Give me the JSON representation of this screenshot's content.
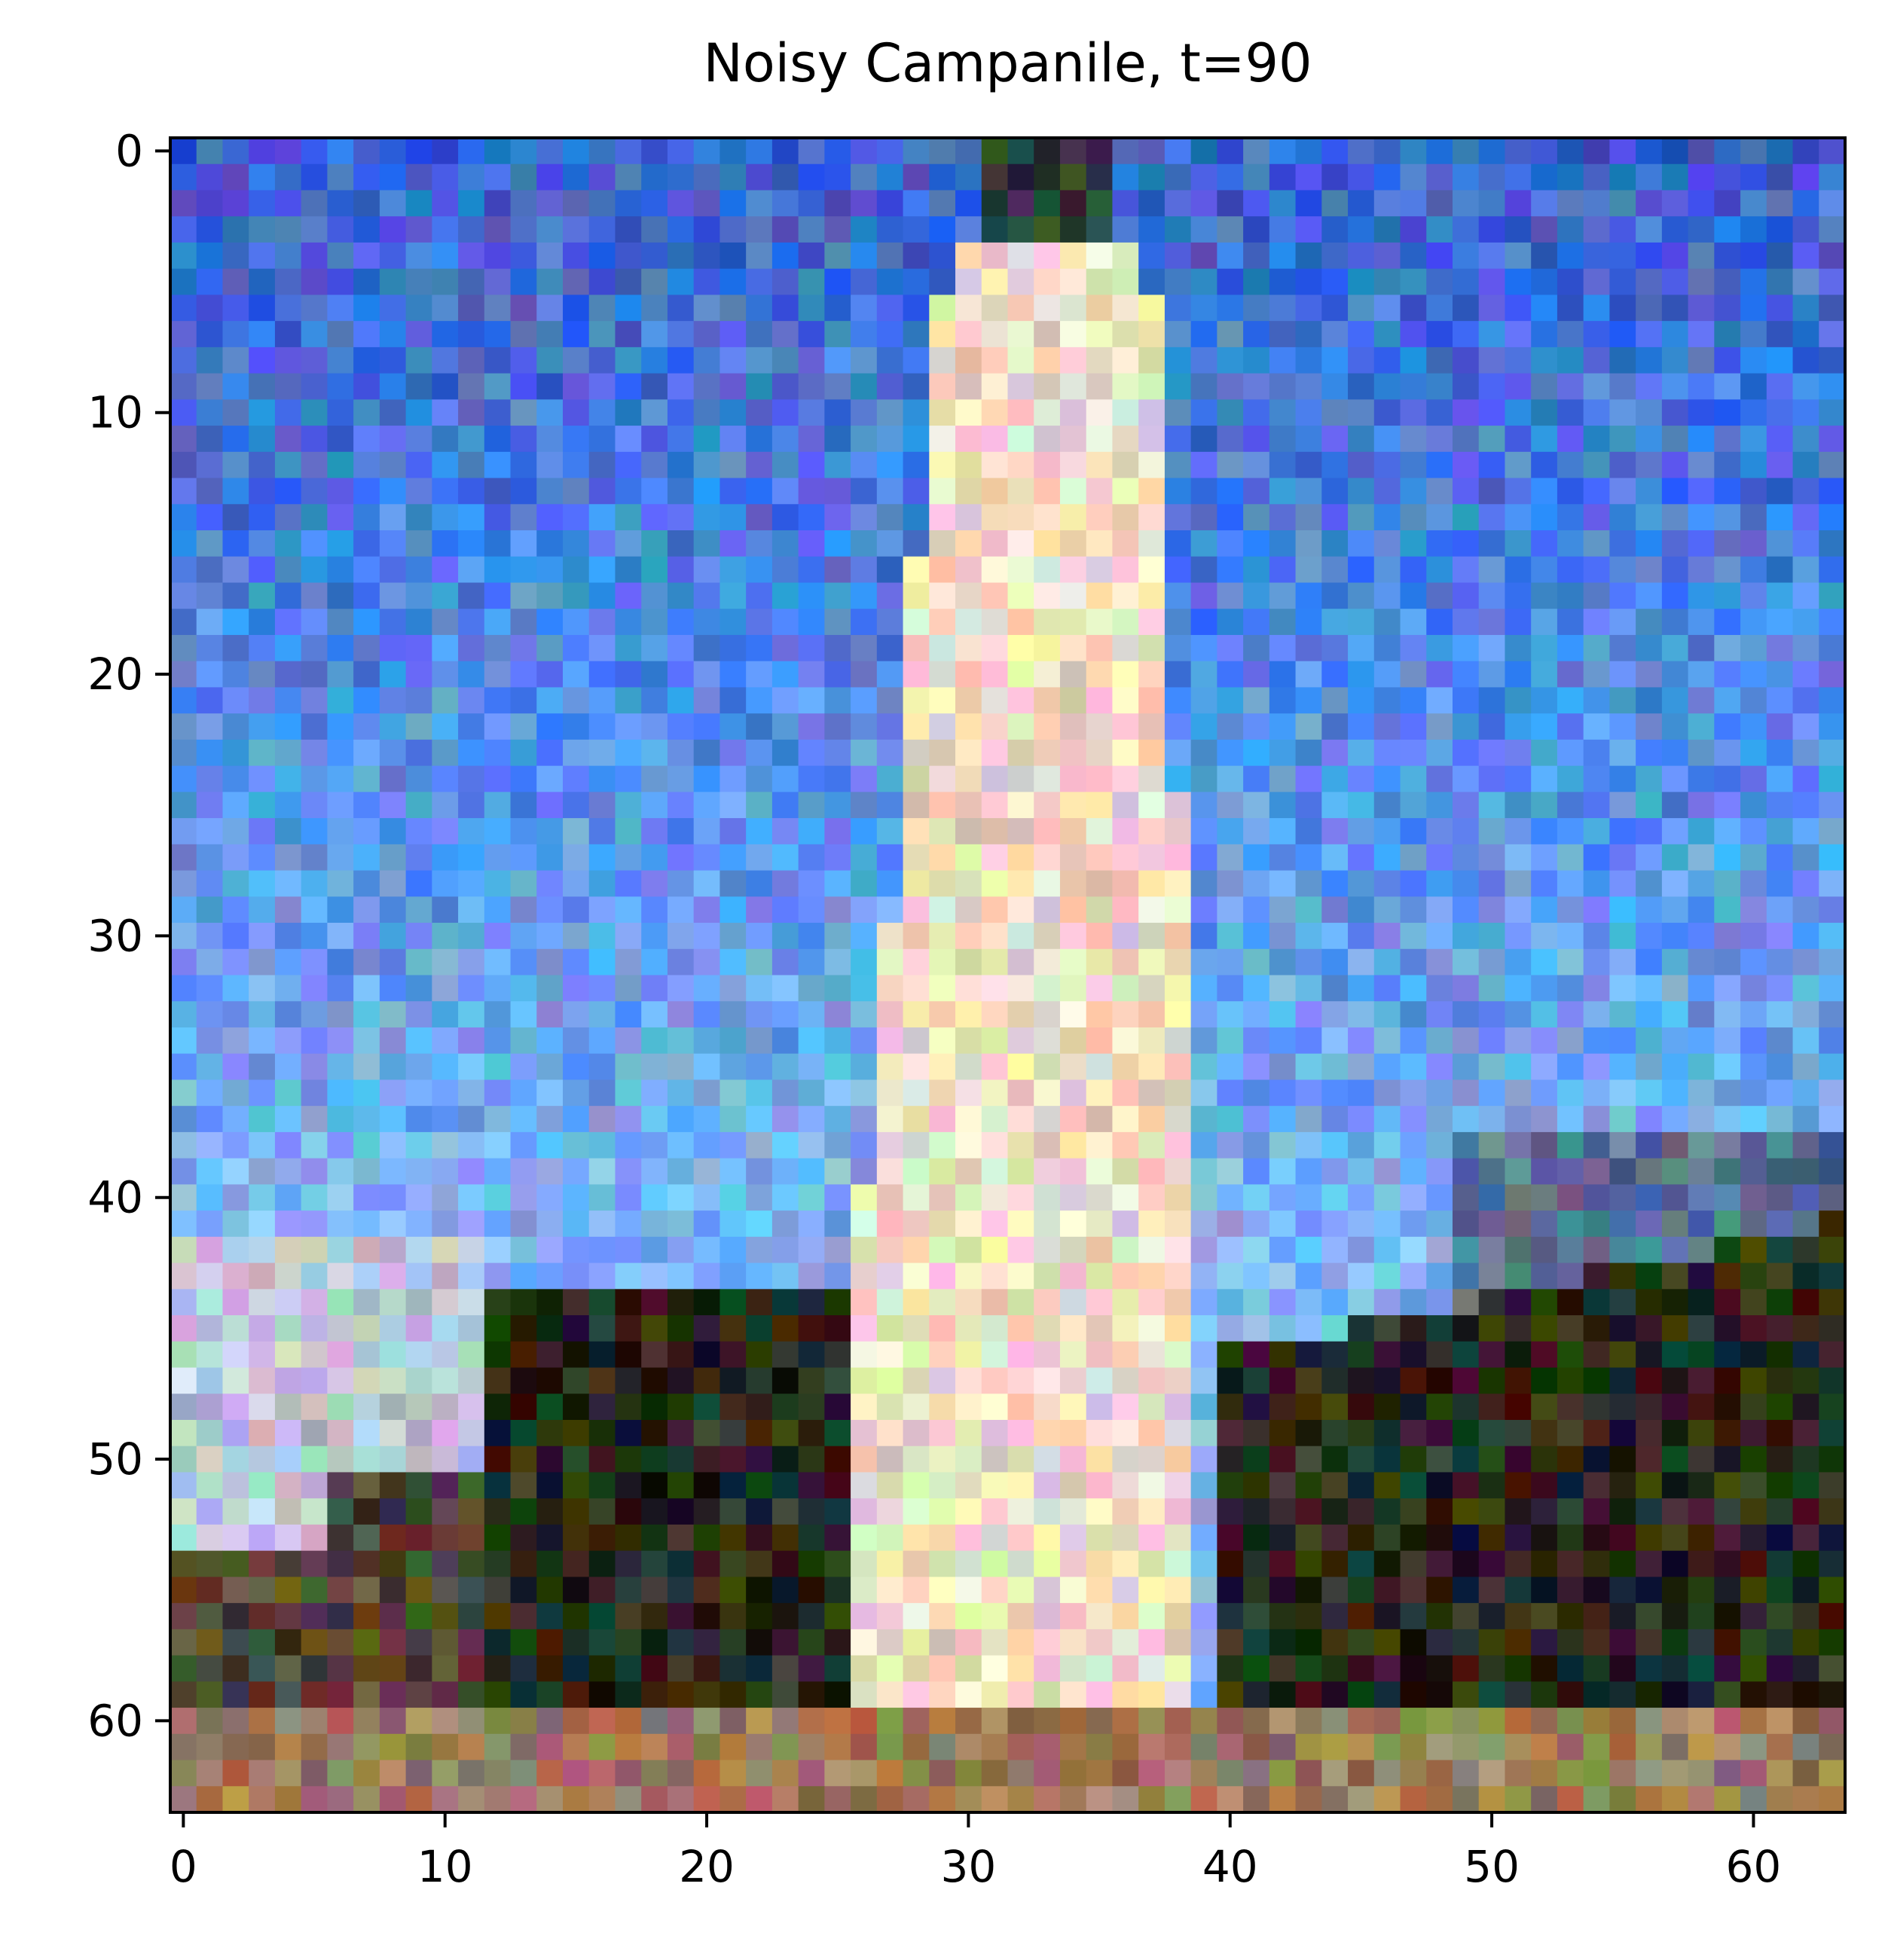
{
  "chart_data": {
    "type": "heatmap",
    "title": "Noisy Campanile, t=90",
    "xlabel": "",
    "ylabel": "",
    "image_grid_size": [
      64,
      64
    ],
    "x_ticks": [
      0,
      10,
      20,
      30,
      40,
      50,
      60
    ],
    "y_ticks": [
      0,
      10,
      20,
      30,
      40,
      50,
      60
    ],
    "xlim": [
      -0.5,
      63.5
    ],
    "ylim": [
      63.5,
      -0.5
    ],
    "grid": false,
    "legend": "none",
    "image_description": "64x64 pixelated RGB image with heavy noise: bright cream tower (campanile) centered around columns 26-38 with narrow dark spire at top (rows 0-4), blue sky fading to lighter blue toward horizon, dark green trees at lower left and lower right, light hills at left around rows 42-56, brownish ground strip along bottom rows 60-63",
    "colors": {
      "sky_top": "#3a63cc",
      "sky_mid": "#4f8ae6",
      "sky_low": "#7cb4f5",
      "tower": "#efdcc4",
      "spire": "#2a3a3a",
      "trees": "#2a2a1c",
      "hills": "#bcc6d6",
      "ground": "#9a7a5e"
    }
  }
}
